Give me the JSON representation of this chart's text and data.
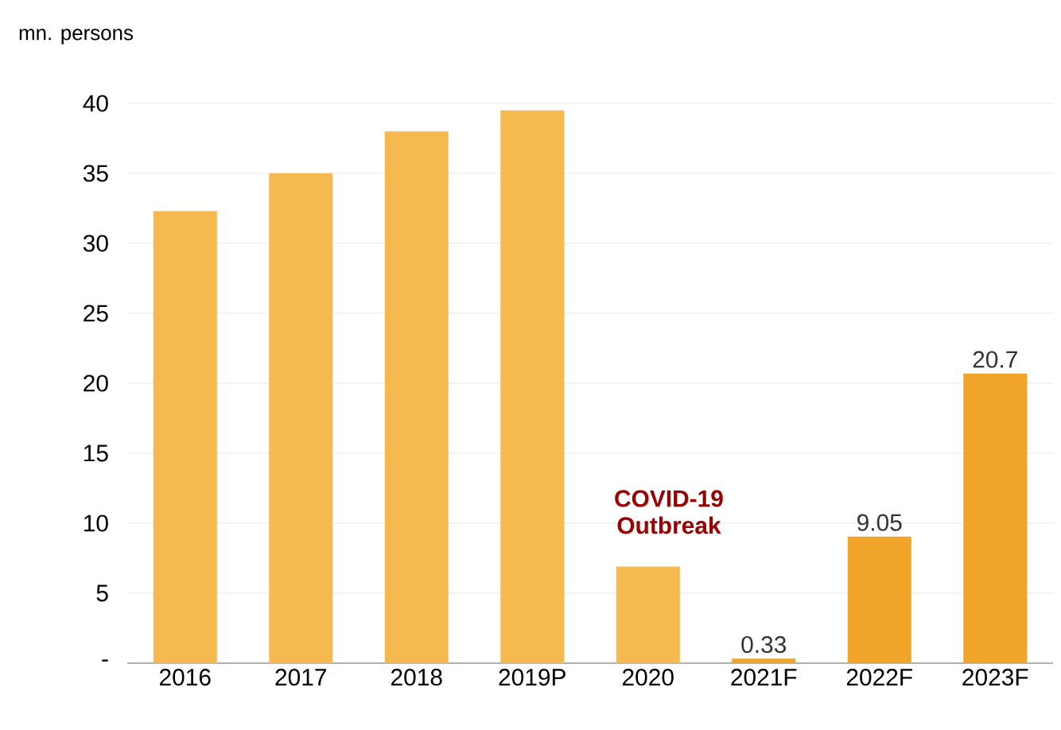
{
  "chart_data": {
    "type": "bar",
    "ylabel": "mn. persons",
    "categories": [
      "2016",
      "2017",
      "2018",
      "2019P",
      "2020",
      "2021F",
      "2022F",
      "2023F"
    ],
    "values": [
      32.3,
      35.0,
      38.0,
      39.5,
      6.9,
      0.33,
      9.05,
      20.7
    ],
    "colors": [
      "#f5b950",
      "#f5b950",
      "#f5b950",
      "#f5b950",
      "#f5b950",
      "#f0a428",
      "#f0a428",
      "#f0a428"
    ],
    "value_labels": [
      null,
      null,
      null,
      null,
      null,
      "0.33",
      "9.05",
      "20.7"
    ],
    "ylim": [
      0,
      40
    ],
    "yticks": [
      {
        "value": 0,
        "label": "-"
      },
      5,
      10,
      15,
      20,
      25,
      30,
      35,
      40
    ],
    "grid": "y",
    "annotations": [
      "COVID-19 Outbreak"
    ]
  }
}
